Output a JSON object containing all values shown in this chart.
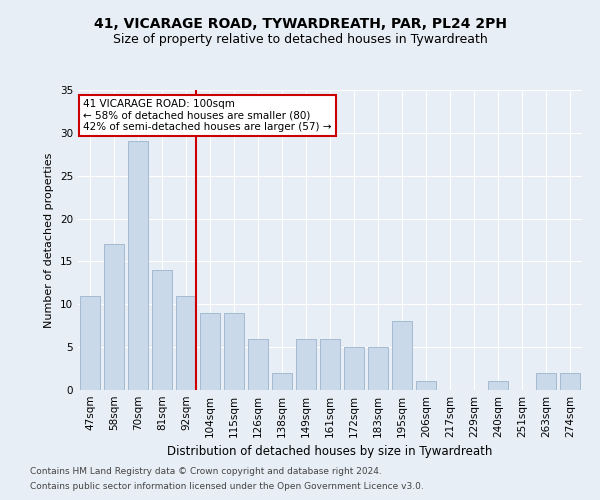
{
  "title": "41, VICARAGE ROAD, TYWARDREATH, PAR, PL24 2PH",
  "subtitle": "Size of property relative to detached houses in Tywardreath",
  "xlabel": "Distribution of detached houses by size in Tywardreath",
  "ylabel": "Number of detached properties",
  "categories": [
    "47sqm",
    "58sqm",
    "70sqm",
    "81sqm",
    "92sqm",
    "104sqm",
    "115sqm",
    "126sqm",
    "138sqm",
    "149sqm",
    "161sqm",
    "172sqm",
    "183sqm",
    "195sqm",
    "206sqm",
    "217sqm",
    "229sqm",
    "240sqm",
    "251sqm",
    "263sqm",
    "274sqm"
  ],
  "values": [
    11,
    17,
    29,
    14,
    11,
    9,
    9,
    6,
    2,
    6,
    6,
    5,
    5,
    8,
    1,
    0,
    0,
    1,
    0,
    2,
    2
  ],
  "bar_color": "#c9d9e9",
  "bar_edgecolor": "#9ab4cc",
  "vline_color": "#cc0000",
  "annotation_text": "41 VICARAGE ROAD: 100sqm\n← 58% of detached houses are smaller (80)\n42% of semi-detached houses are larger (57) →",
  "annotation_box_facecolor": "#ffffff",
  "annotation_box_edgecolor": "#cc0000",
  "ylim": [
    0,
    35
  ],
  "yticks": [
    0,
    5,
    10,
    15,
    20,
    25,
    30,
    35
  ],
  "footer1": "Contains HM Land Registry data © Crown copyright and database right 2024.",
  "footer2": "Contains public sector information licensed under the Open Government Licence v3.0.",
  "background_color": "#e8eef5",
  "plot_background_color": "#e8eef5",
  "grid_color": "#ffffff",
  "title_fontsize": 10,
  "subtitle_fontsize": 9,
  "xlabel_fontsize": 8.5,
  "ylabel_fontsize": 8,
  "tick_fontsize": 7.5,
  "annotation_fontsize": 7.5,
  "footer_fontsize": 6.5
}
